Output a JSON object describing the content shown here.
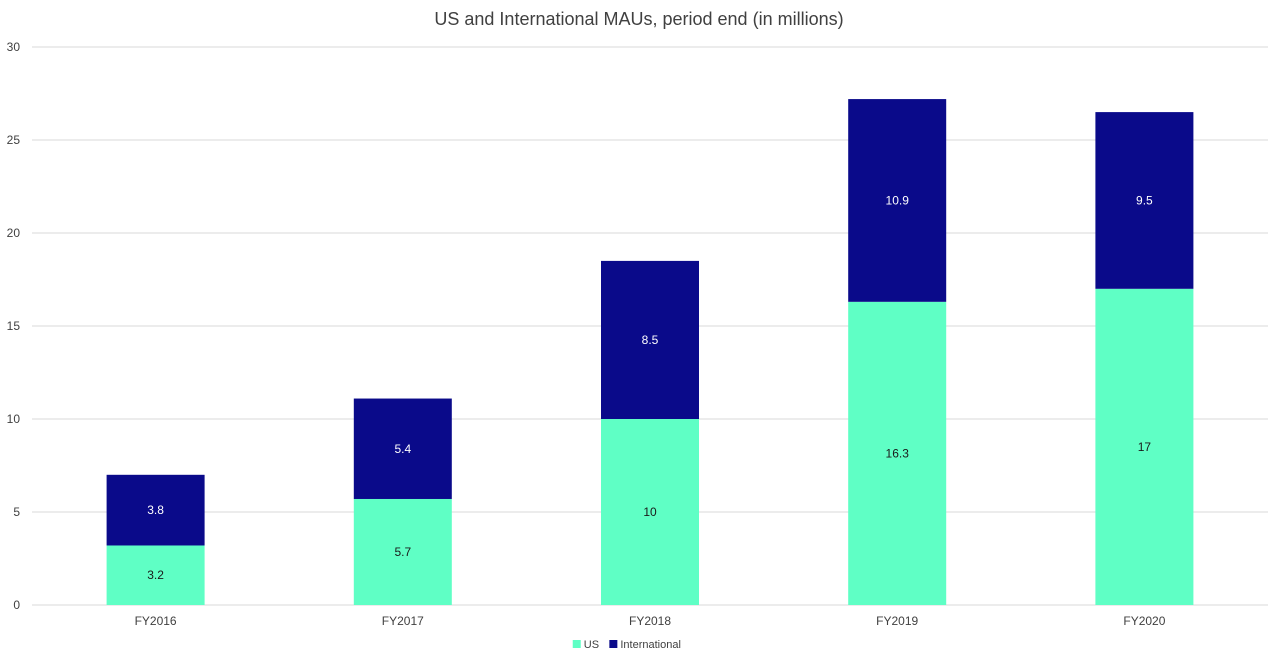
{
  "chart_data": {
    "type": "bar",
    "stacked": true,
    "title": "US and International MAUs, period end (in millions)",
    "categories": [
      "FY2016",
      "FY2017",
      "FY2018",
      "FY2019",
      "FY2020"
    ],
    "series": [
      {
        "name": "US",
        "values": [
          3.2,
          5.7,
          10,
          16.3,
          17
        ],
        "color": "#5fffc5",
        "label_color": "#1a1a1a"
      },
      {
        "name": "International",
        "values": [
          3.8,
          5.4,
          8.5,
          10.9,
          9.5
        ],
        "color": "#0a0a8a",
        "label_color": "#ffffff"
      }
    ],
    "ylim": [
      0,
      30
    ],
    "yticks": [
      0,
      5,
      10,
      15,
      20,
      25,
      30
    ],
    "grid": true,
    "legend": "bottom-center",
    "colors": {
      "gridline": "#d9d9d9",
      "axis_text": "#404040",
      "title": "#404040"
    }
  }
}
